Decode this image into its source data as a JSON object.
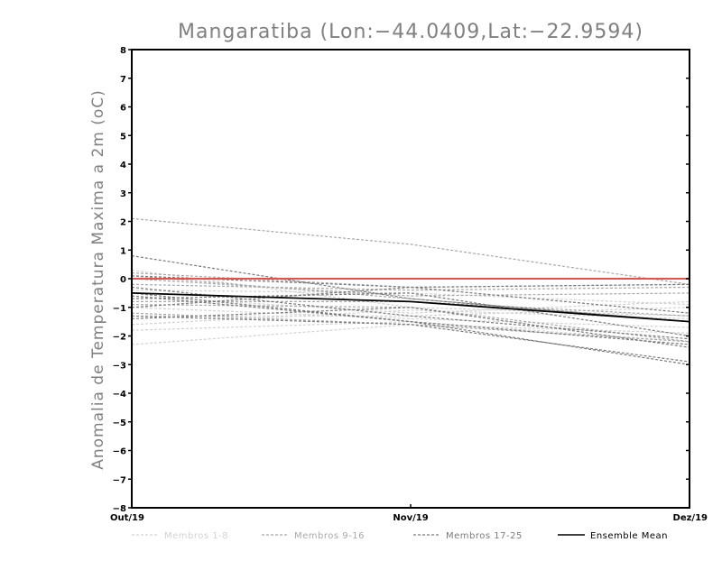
{
  "chart_data": {
    "type": "line",
    "title": "Mangaratiba (Lon:−44.0409,Lat:−22.9594)",
    "xlabel": "",
    "ylabel": "Anomalia de Temperatura Maxima a 2m (oC)",
    "categories": [
      "Out/19",
      "Nov/19",
      "Dez/19"
    ],
    "ylim": [
      -8,
      8
    ],
    "yticks": [
      8,
      7,
      6,
      5,
      4,
      3,
      2,
      1,
      0,
      -1,
      -2,
      -3,
      -4,
      -5,
      -6,
      -7,
      -8
    ],
    "grid": false,
    "reference_line": {
      "value": 0,
      "color": "#e8504a"
    },
    "legend": {
      "placement": "bottom",
      "entries": [
        {
          "label": "Membros 1-8",
          "color": "#d2d2d2",
          "style": "dashed"
        },
        {
          "label": "Membros 9-16",
          "color": "#a8a8a8",
          "style": "dashed"
        },
        {
          "label": "Membros 17-25",
          "color": "#7a7a7a",
          "style": "dashed"
        },
        {
          "label": "Ensemble Mean",
          "color": "#000000",
          "style": "solid"
        }
      ]
    },
    "groups": [
      {
        "name": "Membros 1-8",
        "color": "#d2d2d2",
        "members": [
          [
            -2.3,
            -1.6,
            -1.9
          ],
          [
            -1.8,
            -1.5,
            -2.2
          ],
          [
            0.3,
            -1.0,
            -1.3
          ],
          [
            -0.6,
            -1.2,
            -0.8
          ],
          [
            -1.3,
            -1.3,
            -1.0
          ],
          [
            -0.4,
            -0.5,
            -0.9
          ],
          [
            -1.0,
            -1.4,
            -1.7
          ],
          [
            -1.6,
            -1.1,
            -1.4
          ]
        ]
      },
      {
        "name": "Membros 9-16",
        "color": "#a8a8a8",
        "members": [
          [
            2.1,
            1.2,
            -0.2
          ],
          [
            0.2,
            -0.3,
            -0.2
          ],
          [
            -0.2,
            -0.4,
            -0.3
          ],
          [
            -1.2,
            -1.6,
            -2.2
          ],
          [
            0.1,
            -0.7,
            -1.5
          ],
          [
            -0.8,
            -0.8,
            -1.3
          ],
          [
            -0.9,
            -1.0,
            -2.2
          ],
          [
            0.0,
            -0.6,
            -0.5
          ]
        ]
      },
      {
        "name": "Membros 17-25",
        "color": "#7a7a7a",
        "members": [
          [
            0.8,
            -0.7,
            -1.5
          ],
          [
            -0.5,
            -1.5,
            -3.0
          ],
          [
            -0.7,
            -0.5,
            -2.0
          ],
          [
            -1.0,
            -0.3,
            -0.2
          ],
          [
            -0.3,
            -1.3,
            -2.1
          ],
          [
            -0.6,
            -1.5,
            -2.3
          ],
          [
            -1.3,
            -1.6,
            -2.9
          ],
          [
            0.1,
            -0.3,
            -1.2
          ],
          [
            -1.4,
            -1.0,
            -2.4
          ]
        ]
      }
    ],
    "ensemble_mean": {
      "name": "Ensemble Mean",
      "color": "#000000",
      "values": [
        -0.5,
        -0.8,
        -1.5
      ]
    }
  }
}
